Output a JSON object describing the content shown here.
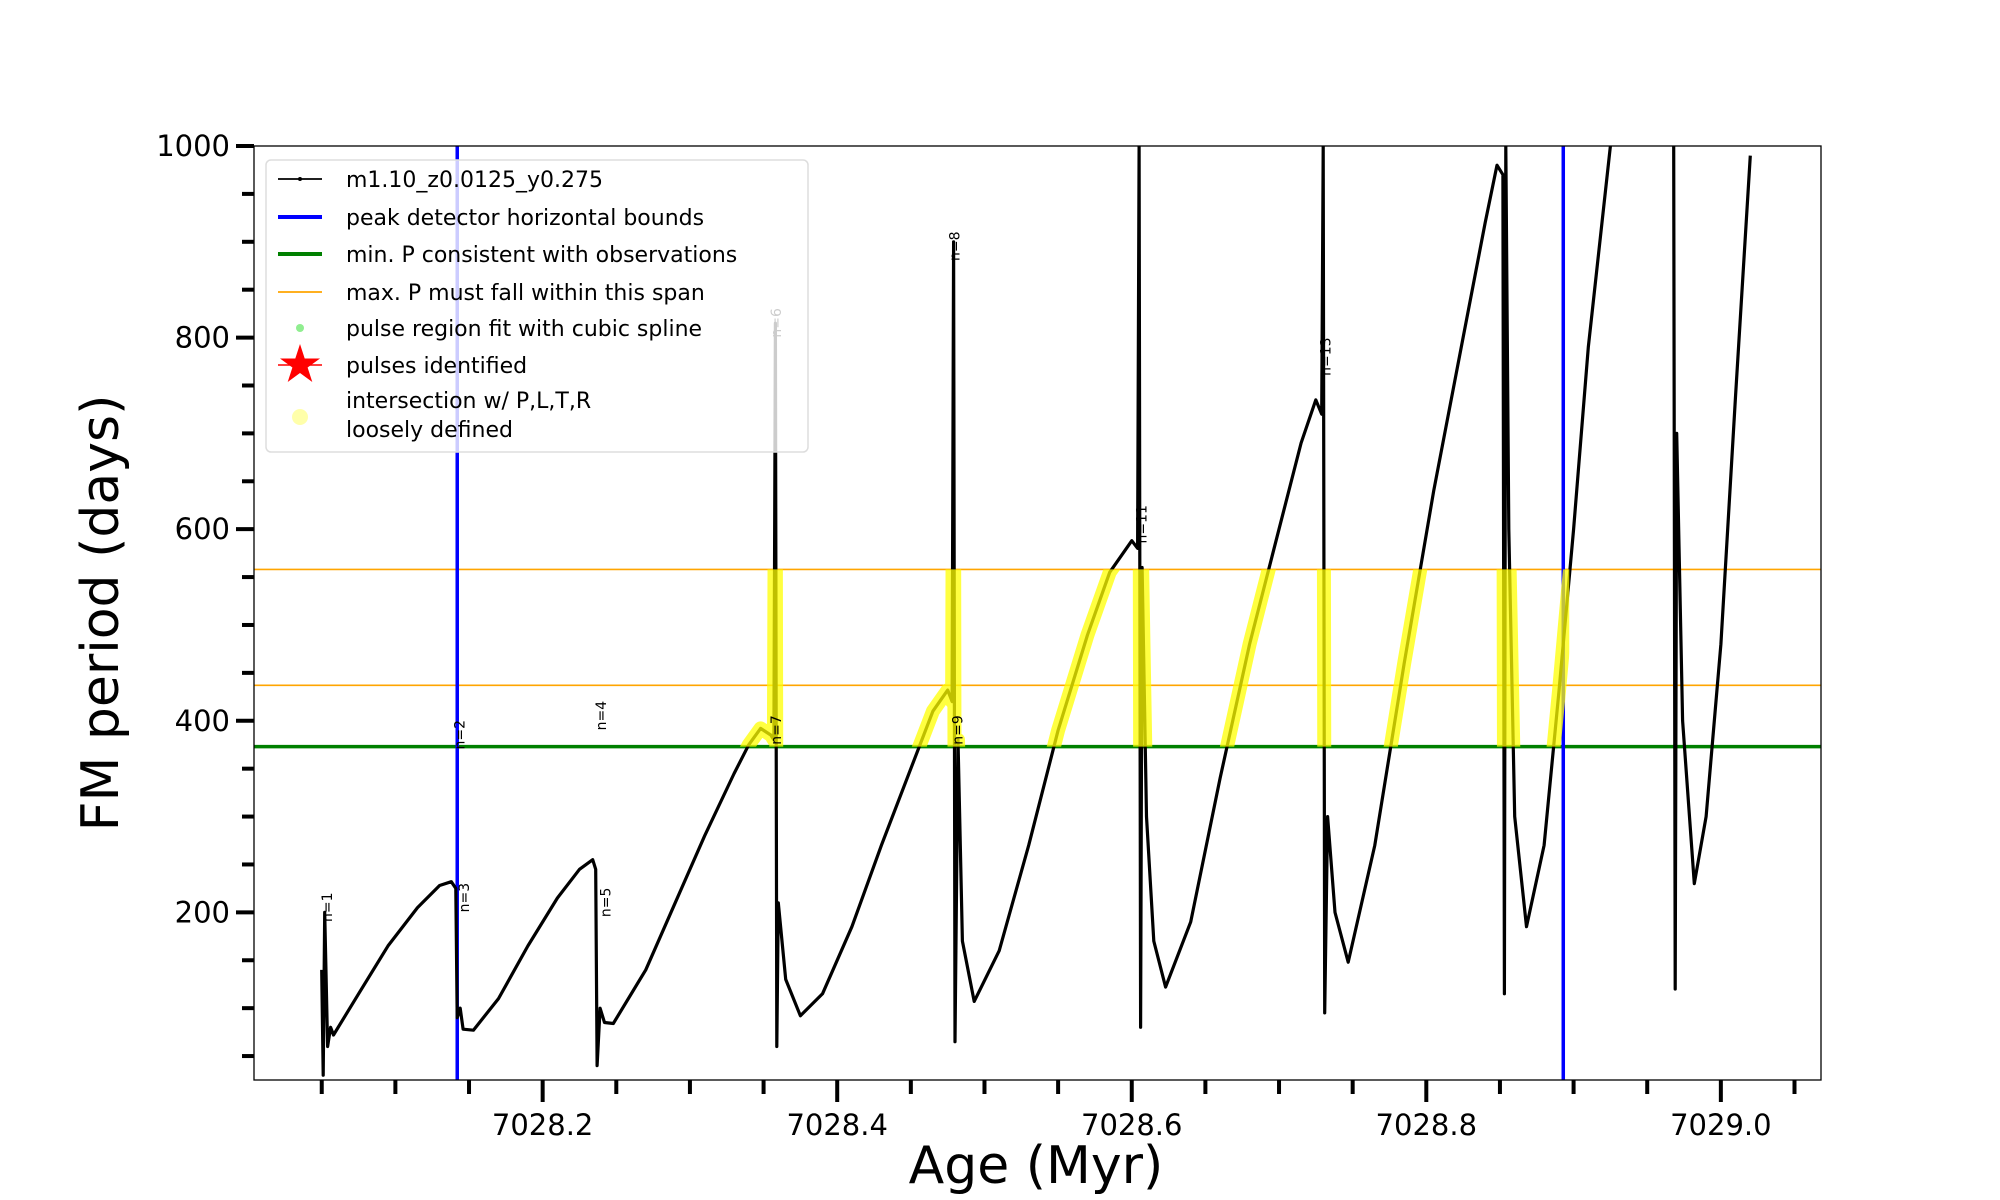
{
  "chart_data": {
    "type": "line",
    "xlabel": "Age (Myr)",
    "ylabel": "FM period (days)",
    "xlim": [
      7028.004,
      7029.068
    ],
    "ylim": [
      25,
      1000
    ],
    "x_ticks": [
      7028.2,
      7028.4,
      7028.6,
      7028.8,
      7029.0
    ],
    "x_tick_labels": [
      "7028.2",
      "7028.4",
      "7028.6",
      "7028.8",
      "7029.0"
    ],
    "x_minor_step": 0.05,
    "y_ticks": [
      200,
      400,
      600,
      800,
      1000
    ],
    "y_tick_labels": [
      "200",
      "400",
      "600",
      "800",
      "1000"
    ],
    "y_minor_step": 50,
    "grid": false,
    "legend_placement": "top-left",
    "legend": [
      {
        "label": "m1.10_z0.0125_y0.275",
        "kind": "line-dot",
        "color": "#000000"
      },
      {
        "label": "peak detector horizontal bounds",
        "kind": "thick-line",
        "color": "#0000ff"
      },
      {
        "label": "min. P consistent with observations",
        "kind": "thick-line",
        "color": "#008000"
      },
      {
        "label": "max. P must fall within this span",
        "kind": "thin-line",
        "color": "#ffa500"
      },
      {
        "label": "pulse region fit with cubic spline",
        "kind": "dot",
        "color": "#90ee90"
      },
      {
        "label": "pulses identified",
        "kind": "star",
        "color": "#ff0000"
      },
      {
        "label": "intersection w/ P,L,T,R",
        "label2": "loosely defined",
        "kind": "circle",
        "color": "#ffffaa"
      }
    ],
    "vertical_lines": {
      "color": "#0000ff",
      "x": [
        7028.142,
        7028.893
      ]
    },
    "min_period_line": {
      "color": "#008000",
      "y": 373
    },
    "max_period_span": {
      "color": "#ffa500",
      "y": [
        437,
        558
      ]
    },
    "highlight_color": "#ffff00",
    "series_color": "#000000",
    "segments": [
      [
        [
          7028.05,
          140
        ],
        [
          7028.051,
          30
        ],
        [
          7028.052,
          200
        ],
        [
          7028.054,
          60
        ],
        [
          7028.056,
          80
        ],
        [
          7028.058,
          72
        ],
        [
          7028.075,
          115
        ],
        [
          7028.095,
          165
        ],
        [
          7028.115,
          205
        ],
        [
          7028.13,
          228
        ],
        [
          7028.138,
          232
        ],
        [
          7028.141,
          225
        ],
        [
          7028.142,
          90
        ],
        [
          7028.144,
          100
        ],
        [
          7028.146,
          78
        ],
        [
          7028.153,
          77
        ],
        [
          7028.17,
          110
        ],
        [
          7028.19,
          165
        ],
        [
          7028.21,
          215
        ],
        [
          7028.225,
          245
        ],
        [
          7028.234,
          255
        ],
        [
          7028.236,
          245
        ],
        [
          7028.237,
          40
        ],
        [
          7028.239,
          100
        ],
        [
          7028.242,
          85
        ],
        [
          7028.248,
          84
        ],
        [
          7028.27,
          140
        ],
        [
          7028.29,
          210
        ],
        [
          7028.31,
          280
        ],
        [
          7028.33,
          345
        ],
        [
          7028.34,
          375
        ],
        [
          7028.348,
          392
        ],
        [
          7028.355,
          385
        ],
        [
          7028.357,
          380
        ],
        [
          7028.358,
          815
        ],
        [
          7028.359,
          60
        ],
        [
          7028.36,
          210
        ],
        [
          7028.365,
          130
        ],
        [
          7028.375,
          92
        ],
        [
          7028.39,
          115
        ],
        [
          7028.41,
          185
        ],
        [
          7028.43,
          270
        ],
        [
          7028.45,
          350
        ],
        [
          7028.465,
          410
        ],
        [
          7028.475,
          432
        ],
        [
          7028.478,
          420
        ],
        [
          7028.479,
          900
        ],
        [
          7028.48,
          65
        ],
        [
          7028.482,
          380
        ],
        [
          7028.485,
          170
        ],
        [
          7028.493,
          107
        ],
        [
          7028.51,
          160
        ],
        [
          7028.53,
          270
        ],
        [
          7028.55,
          390
        ],
        [
          7028.57,
          490
        ],
        [
          7028.585,
          555
        ],
        [
          7028.6,
          588
        ],
        [
          7028.604,
          580
        ],
        [
          7028.605,
          1000
        ],
        [
          7028.606,
          80
        ],
        [
          7028.607,
          560
        ],
        [
          7028.61,
          300
        ],
        [
          7028.615,
          170
        ],
        [
          7028.623,
          122
        ],
        [
          7028.64,
          190
        ],
        [
          7028.66,
          340
        ],
        [
          7028.68,
          480
        ],
        [
          7028.7,
          600
        ],
        [
          7028.715,
          690
        ],
        [
          7028.725,
          735
        ],
        [
          7028.729,
          720
        ],
        [
          7028.73,
          1000
        ],
        [
          7028.731,
          95
        ],
        [
          7028.733,
          300
        ],
        [
          7028.738,
          200
        ],
        [
          7028.747,
          148
        ],
        [
          7028.765,
          270
        ],
        [
          7028.785,
          460
        ],
        [
          7028.805,
          640
        ],
        [
          7028.825,
          800
        ],
        [
          7028.84,
          920
        ],
        [
          7028.848,
          980
        ],
        [
          7028.852,
          970
        ],
        [
          7028.853,
          115
        ],
        [
          7028.854,
          1000
        ],
        [
          7028.856,
          600
        ],
        [
          7028.86,
          300
        ],
        [
          7028.868,
          185
        ],
        [
          7028.88,
          270
        ],
        [
          7028.89,
          430
        ],
        [
          7028.9,
          600
        ],
        [
          7028.91,
          790
        ],
        [
          7028.925,
          1000
        ]
      ],
      [
        [
          7028.968,
          1000
        ],
        [
          7028.969,
          120
        ],
        [
          7028.97,
          700
        ],
        [
          7028.974,
          400
        ],
        [
          7028.982,
          230
        ],
        [
          7028.99,
          300
        ],
        [
          7029.0,
          480
        ],
        [
          7029.01,
          740
        ],
        [
          7029.02,
          990
        ]
      ]
    ],
    "pulse_labels": [
      {
        "text": "n=1",
        "x": 7028.057,
        "y": 190,
        "color": "#000000"
      },
      {
        "text": "n=2",
        "x": 7028.147,
        "y": 370,
        "color": "#000000"
      },
      {
        "text": "n=3",
        "x": 7028.15,
        "y": 200,
        "color": "#000000"
      },
      {
        "text": "n=4",
        "x": 7028.243,
        "y": 390,
        "color": "#000000"
      },
      {
        "text": "n=5",
        "x": 7028.246,
        "y": 195,
        "color": "#000000"
      },
      {
        "text": "n=6",
        "x": 7028.362,
        "y": 800,
        "color": "#bbbbbb"
      },
      {
        "text": "n=7",
        "x": 7028.362,
        "y": 375,
        "color": "#000000"
      },
      {
        "text": "n=8",
        "x": 7028.483,
        "y": 880,
        "color": "#000000"
      },
      {
        "text": "n=9",
        "x": 7028.485,
        "y": 375,
        "color": "#000000"
      },
      {
        "text": "n=11",
        "x": 7028.61,
        "y": 585,
        "color": "#000000"
      },
      {
        "text": "n=13",
        "x": 7028.735,
        "y": 760,
        "color": "#000000"
      }
    ]
  }
}
